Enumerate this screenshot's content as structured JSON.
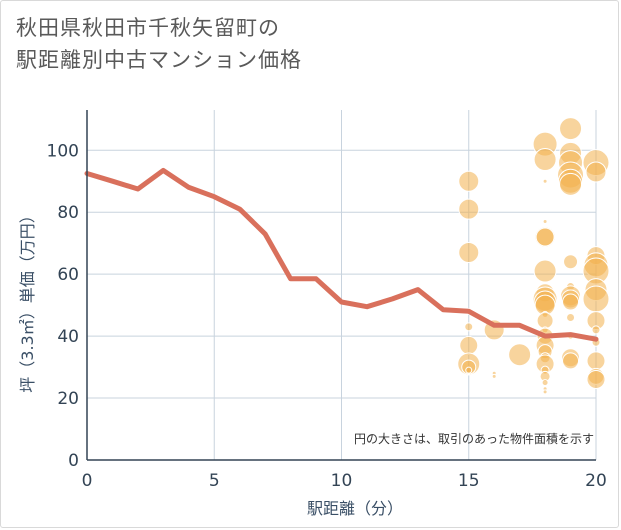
{
  "title": {
    "line1": "秋田県秋田市千秋矢留町の",
    "line2": "駅距離別中古マンション価格"
  },
  "chart_data": {
    "type": "scatter",
    "xlabel": "駅距離（分）",
    "ylabel": "坪（3.3㎡）単価（万円）",
    "xlim": [
      0,
      20
    ],
    "ylim": [
      0,
      113
    ],
    "xticks": [
      0,
      5,
      10,
      15,
      20
    ],
    "yticks": [
      0,
      20,
      40,
      60,
      80,
      100
    ],
    "grid": true,
    "annotation": "円の大きさは、取引のあった物件面積を示す",
    "colors": {
      "line": "#d9705c",
      "bubble": "#f2b04d",
      "grid": "#c8d3de",
      "axis": "#334455"
    },
    "series": [
      {
        "kind": "line",
        "x": [
          0,
          1,
          2,
          3,
          4,
          5,
          6,
          7,
          8,
          9,
          10,
          11,
          12,
          13,
          14,
          15,
          16,
          17,
          18,
          19,
          20
        ],
        "y": [
          92.5,
          90,
          87.5,
          93.5,
          88,
          85,
          81,
          73,
          58.5,
          58.5,
          51,
          49.5,
          52,
          55,
          48.5,
          48,
          43.5,
          43.5,
          40,
          40.5,
          39
        ]
      },
      {
        "kind": "bubble",
        "points": [
          {
            "x": 15,
            "y": 90,
            "s": 10
          },
          {
            "x": 15,
            "y": 81,
            "s": 10
          },
          {
            "x": 15,
            "y": 67,
            "s": 10
          },
          {
            "x": 15,
            "y": 48,
            "s": 3
          },
          {
            "x": 15,
            "y": 43,
            "s": 4
          },
          {
            "x": 15,
            "y": 37,
            "s": 9
          },
          {
            "x": 15,
            "y": 31,
            "s": 11
          },
          {
            "x": 15,
            "y": 30,
            "s": 7
          },
          {
            "x": 15,
            "y": 29,
            "s": 3
          },
          {
            "x": 16,
            "y": 42,
            "s": 10
          },
          {
            "x": 16,
            "y": 28,
            "s": 2
          },
          {
            "x": 16,
            "y": 27,
            "s": 2
          },
          {
            "x": 17,
            "y": 34,
            "s": 11
          },
          {
            "x": 18,
            "y": 102,
            "s": 12
          },
          {
            "x": 18,
            "y": 97,
            "s": 11
          },
          {
            "x": 18,
            "y": 90,
            "s": 2
          },
          {
            "x": 18,
            "y": 77,
            "s": 2
          },
          {
            "x": 18,
            "y": 72,
            "s": 10
          },
          {
            "x": 18,
            "y": 72,
            "s": 9
          },
          {
            "x": 18,
            "y": 61,
            "s": 11
          },
          {
            "x": 18,
            "y": 54,
            "s": 9
          },
          {
            "x": 18,
            "y": 52,
            "s": 12
          },
          {
            "x": 18,
            "y": 51,
            "s": 11
          },
          {
            "x": 18,
            "y": 50,
            "s": 10
          },
          {
            "x": 18,
            "y": 47,
            "s": 3
          },
          {
            "x": 18,
            "y": 45,
            "s": 8
          },
          {
            "x": 18,
            "y": 42,
            "s": 3
          },
          {
            "x": 18,
            "y": 40,
            "s": 8
          },
          {
            "x": 18,
            "y": 37,
            "s": 9
          },
          {
            "x": 18,
            "y": 35,
            "s": 7
          },
          {
            "x": 18,
            "y": 33,
            "s": 5
          },
          {
            "x": 18,
            "y": 31,
            "s": 9
          },
          {
            "x": 18,
            "y": 29,
            "s": 4
          },
          {
            "x": 18,
            "y": 27,
            "s": 5
          },
          {
            "x": 18,
            "y": 25,
            "s": 3
          },
          {
            "x": 18,
            "y": 23,
            "s": 2
          },
          {
            "x": 18,
            "y": 22,
            "s": 2
          },
          {
            "x": 19,
            "y": 107,
            "s": 11
          },
          {
            "x": 19,
            "y": 99,
            "s": 11
          },
          {
            "x": 19,
            "y": 96,
            "s": 12
          },
          {
            "x": 19,
            "y": 92,
            "s": 13
          },
          {
            "x": 19,
            "y": 90,
            "s": 12
          },
          {
            "x": 19,
            "y": 89,
            "s": 11
          },
          {
            "x": 19,
            "y": 64,
            "s": 7
          },
          {
            "x": 19,
            "y": 56,
            "s": 4
          },
          {
            "x": 19,
            "y": 53,
            "s": 10
          },
          {
            "x": 19,
            "y": 52,
            "s": 9
          },
          {
            "x": 19,
            "y": 51,
            "s": 8
          },
          {
            "x": 19,
            "y": 46,
            "s": 4
          },
          {
            "x": 19,
            "y": 40,
            "s": 3
          },
          {
            "x": 19,
            "y": 33,
            "s": 9
          },
          {
            "x": 19,
            "y": 32,
            "s": 8
          },
          {
            "x": 20,
            "y": 96,
            "s": 13
          },
          {
            "x": 20,
            "y": 93,
            "s": 10
          },
          {
            "x": 20,
            "y": 66,
            "s": 9
          },
          {
            "x": 20,
            "y": 63,
            "s": 12
          },
          {
            "x": 20,
            "y": 61,
            "s": 13
          },
          {
            "x": 20,
            "y": 55,
            "s": 11
          },
          {
            "x": 20,
            "y": 52,
            "s": 13
          },
          {
            "x": 20,
            "y": 45,
            "s": 9
          },
          {
            "x": 20,
            "y": 42,
            "s": 4
          },
          {
            "x": 20,
            "y": 38,
            "s": 4
          },
          {
            "x": 20,
            "y": 32,
            "s": 9
          },
          {
            "x": 20,
            "y": 27,
            "s": 8
          },
          {
            "x": 20,
            "y": 26,
            "s": 9
          }
        ]
      }
    ]
  }
}
